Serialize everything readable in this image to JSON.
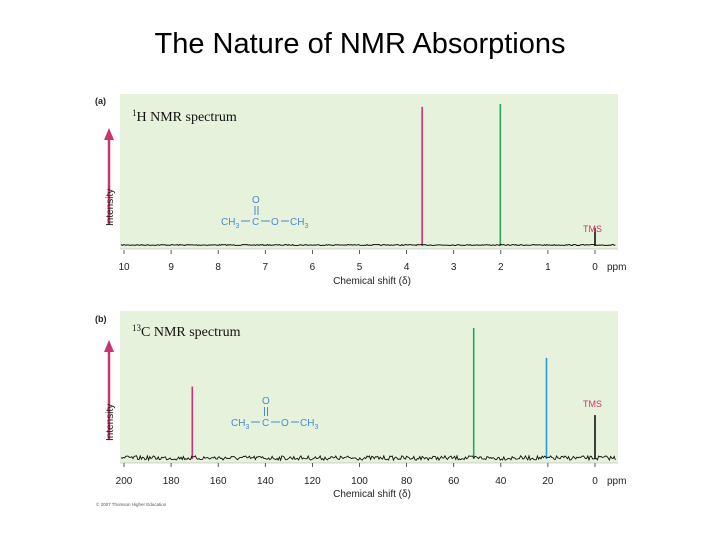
{
  "title": "The Nature of NMR Absorptions",
  "copyright": "© 2007 Thomson Higher Education",
  "colors": {
    "panel_bg": "#e6f2dc",
    "magenta": "#d0307a",
    "green": "#2aa55a",
    "blue": "#2a9ad8",
    "tms": "#c8356e",
    "arrow": "#c8356e",
    "baseline": "#111111"
  },
  "chart_data": [
    {
      "type": "line",
      "panel": "(a)",
      "title": "1H NMR spectrum",
      "title_parts": {
        "sup": "1",
        "main": "H NMR spectrum"
      },
      "xlabel": "Chemical shift (δ)",
      "x_unit": "ppm",
      "ylabel": "Intensity",
      "xlim": [
        10,
        0
      ],
      "ticks": [
        10,
        9,
        8,
        7,
        6,
        5,
        4,
        3,
        2,
        1,
        0
      ],
      "grid": false,
      "peaks": [
        {
          "x": 3.67,
          "height": 0.98,
          "color": "#d0307a"
        },
        {
          "x": 2.01,
          "height": 1.0,
          "color": "#2aa55a"
        },
        {
          "x": 0.0,
          "height": 0.12,
          "color": "#111111"
        }
      ],
      "annotations": [
        {
          "text": "TMS",
          "x": 0.0
        }
      ],
      "structure": {
        "o": "O",
        "ch3_left": "CH",
        "sub3": "3",
        "c": "C",
        "ox": "O",
        "ch3_right": "CH"
      }
    },
    {
      "type": "line",
      "panel": "(b)",
      "title": "13C NMR spectrum",
      "title_parts": {
        "sup": "13",
        "main": "C NMR spectrum"
      },
      "xlabel": "Chemical shift (δ)",
      "x_unit": "ppm",
      "ylabel": "Intensity",
      "xlim": [
        200,
        0
      ],
      "ticks": [
        200,
        180,
        160,
        140,
        120,
        100,
        80,
        60,
        40,
        20,
        0
      ],
      "grid": false,
      "peaks": [
        {
          "x": 171,
          "height": 0.55,
          "color": "#d0307a"
        },
        {
          "x": 51.5,
          "height": 1.0,
          "color": "#2aa55a"
        },
        {
          "x": 20.6,
          "height": 0.77,
          "color": "#2a9ad8"
        },
        {
          "x": 0.0,
          "height": 0.33,
          "color": "#111111"
        }
      ],
      "annotations": [
        {
          "text": "TMS",
          "x": 0.0
        }
      ],
      "structure": {
        "o": "O",
        "ch3_left": "CH",
        "sub3": "3",
        "c": "C",
        "ox": "O",
        "ch3_right": "CH"
      }
    }
  ]
}
